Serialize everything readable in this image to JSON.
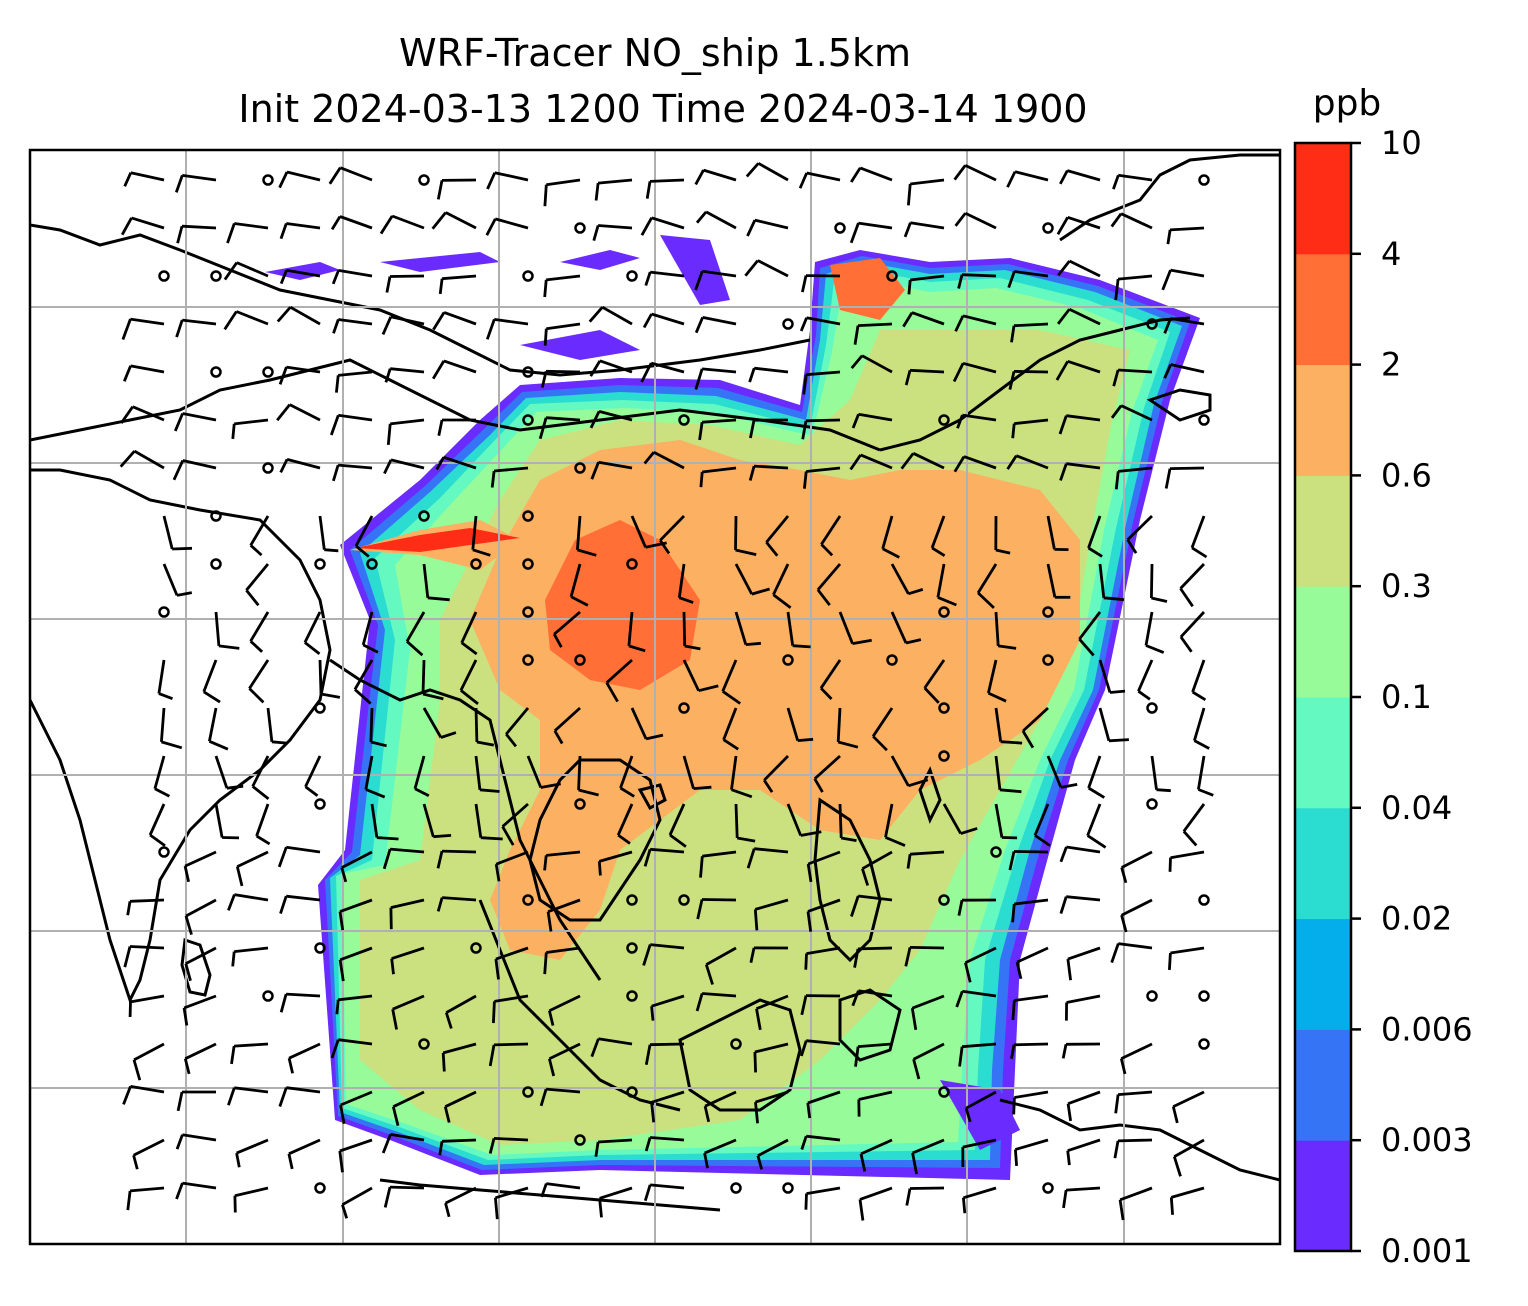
{
  "chart_data": {
    "type": "heatmap",
    "title": "WRF-Tracer NO_ship 1.5km",
    "subtitle": "Init 2024-03-13 1200 Time 2024-03-14 1900",
    "colorbar": {
      "unit": "ppb",
      "levels": [
        "0.001",
        "0.003",
        "0.006",
        "0.02",
        "0.04",
        "0.1",
        "0.3",
        "0.6",
        "2",
        "4",
        "10"
      ],
      "colors": [
        "#6a2bff",
        "#3575f5",
        "#04aeea",
        "#2bdcd0",
        "#64f9c0",
        "#97fb9a",
        "#cbe07f",
        "#fcb062",
        "#ff6f36",
        "#ff2c16"
      ]
    },
    "map": {
      "grid": true,
      "coastlines": true,
      "wind_barbs": true
    }
  }
}
